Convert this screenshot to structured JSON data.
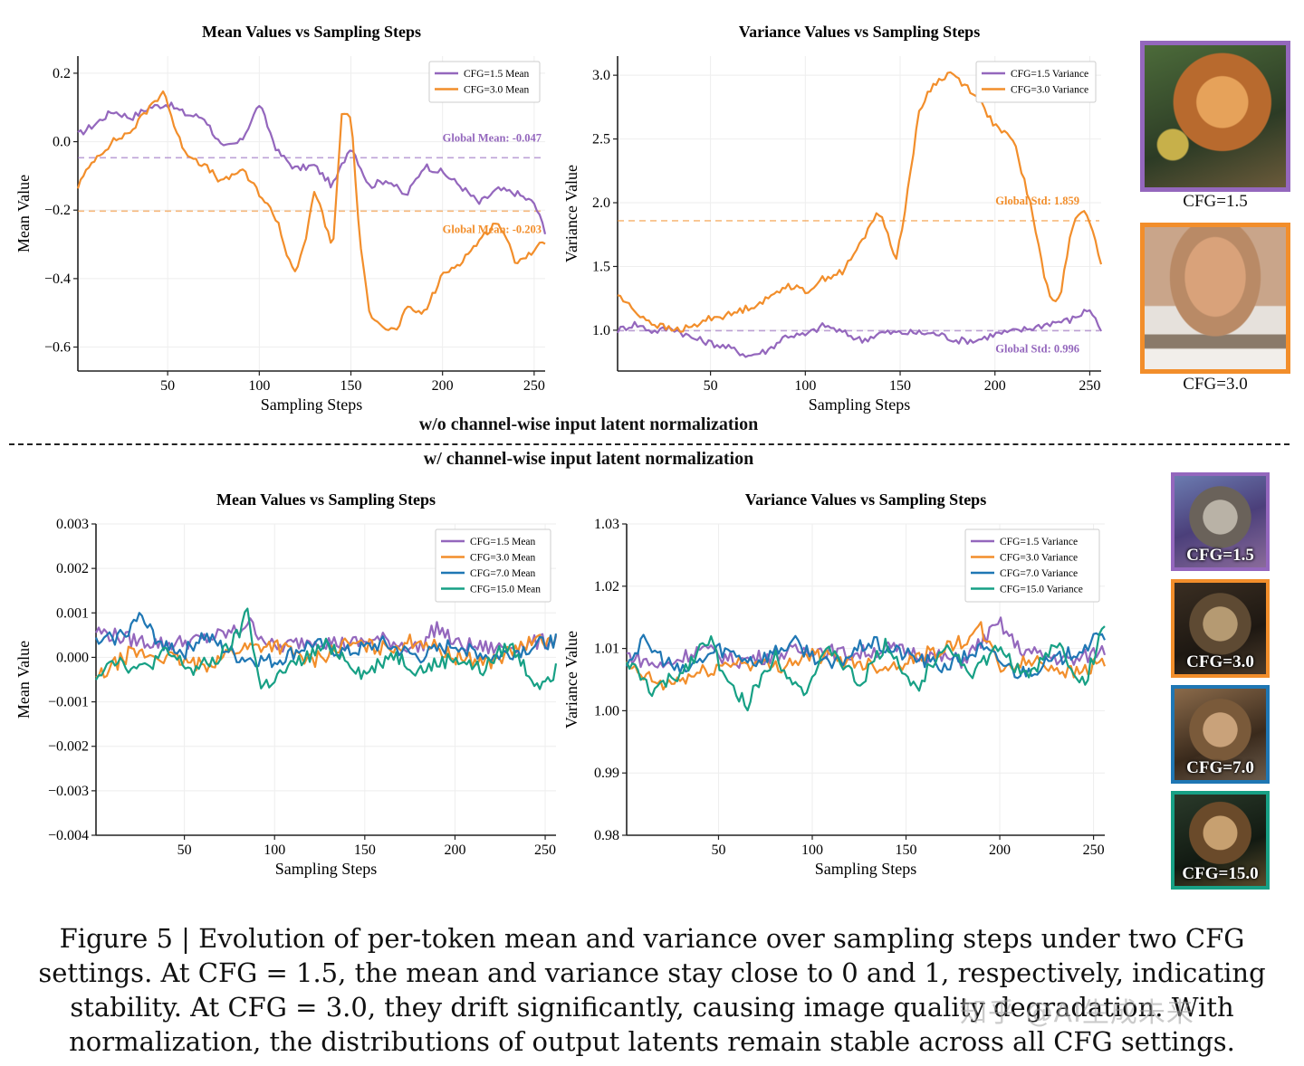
{
  "section_top_label": "w/o channel-wise input latent normalization",
  "section_bottom_label": "w/ channel-wise input latent normalization",
  "caption": "Figure 5 | Evolution of per-token mean and variance over sampling steps under two CFG settings. At CFG = 1.5, the mean and variance stay close to 0 and 1, respectively, indicating stability. At CFG = 3.0, they drift significantly, causing image quality degradation. With normalization, the distributions of output latents remain stable across all CFG settings.",
  "watermark": "知乎 @AI生成未来",
  "colors": {
    "cfg15": "#9467bd",
    "cfg30": "#f28e2b",
    "cfg70": "#1f77b4",
    "cfg150": "#17a085"
  },
  "thumbs_top": [
    {
      "label": "CFG=1.5",
      "color": "#9467bd",
      "icon": "cat-image"
    },
    {
      "label": "CFG=3.0",
      "color": "#f28e2b",
      "icon": "cat-image"
    }
  ],
  "thumbs_bottom": [
    {
      "label": "CFG=1.5",
      "color": "#9467bd",
      "icon": "cat-image"
    },
    {
      "label": "CFG=3.0",
      "color": "#f28e2b",
      "icon": "cat-image"
    },
    {
      "label": "CFG=7.0",
      "color": "#1f77b4",
      "icon": "cat-image"
    },
    {
      "label": "CFG=15.0",
      "color": "#17a085",
      "icon": "cat-image"
    }
  ],
  "chart_data": [
    {
      "type": "line",
      "title": "Mean Values vs Sampling Steps",
      "xlabel": "Sampling Steps",
      "ylabel": "Mean Value",
      "xlim": [
        1,
        256
      ],
      "ylim": [
        -0.67,
        0.25
      ],
      "xticks": [
        50,
        100,
        150,
        200,
        250
      ],
      "yticks": [
        0.2,
        0.0,
        -0.2,
        -0.4,
        -0.6
      ],
      "ytick_labels": [
        "0.2",
        "0.0",
        "−0.2",
        "−0.4",
        "−0.6"
      ],
      "legend": "top-right",
      "series": [
        {
          "name": "CFG=1.5 Mean",
          "color": "#9467bd",
          "x": [
            1,
            10,
            20,
            30,
            40,
            50,
            60,
            70,
            80,
            90,
            100,
            110,
            120,
            130,
            140,
            150,
            160,
            170,
            180,
            190,
            200,
            210,
            220,
            230,
            240,
            250,
            256
          ],
          "y": [
            0.02,
            0.05,
            0.09,
            0.07,
            0.1,
            0.11,
            0.08,
            0.07,
            -0.02,
            0.0,
            0.11,
            -0.03,
            -0.08,
            -0.07,
            -0.13,
            -0.01,
            -0.13,
            -0.11,
            -0.16,
            -0.07,
            -0.09,
            -0.13,
            -0.18,
            -0.14,
            -0.15,
            -0.18,
            -0.26
          ]
        },
        {
          "name": "CFG=3.0 Mean",
          "color": "#f28e2b",
          "x": [
            1,
            10,
            20,
            30,
            40,
            48,
            55,
            60,
            70,
            80,
            90,
            100,
            110,
            115,
            120,
            125,
            130,
            135,
            140,
            145,
            150,
            155,
            160,
            165,
            170,
            175,
            180,
            190,
            200,
            210,
            220,
            230,
            240,
            250,
            256
          ],
          "y": [
            -0.13,
            -0.05,
            0.0,
            0.03,
            0.1,
            0.15,
            0.02,
            -0.03,
            -0.07,
            -0.12,
            -0.08,
            -0.15,
            -0.23,
            -0.33,
            -0.38,
            -0.3,
            -0.14,
            -0.22,
            -0.32,
            0.08,
            0.08,
            -0.3,
            -0.5,
            -0.52,
            -0.55,
            -0.55,
            -0.49,
            -0.5,
            -0.39,
            -0.35,
            -0.29,
            -0.23,
            -0.35,
            -0.32,
            -0.29
          ]
        }
      ],
      "annotations": [
        {
          "text": "Global Mean: -0.047",
          "y": -0.047,
          "color": "#9467bd"
        },
        {
          "text": "Global Mean: -0.203",
          "y": -0.203,
          "color": "#f28e2b"
        }
      ]
    },
    {
      "type": "line",
      "title": "Variance Values vs Sampling Steps",
      "xlabel": "Sampling Steps",
      "ylabel": "Variance Value",
      "xlim": [
        1,
        256
      ],
      "ylim": [
        0.68,
        3.15
      ],
      "xticks": [
        50,
        100,
        150,
        200,
        250
      ],
      "yticks": [
        3.0,
        2.5,
        2.0,
        1.5,
        1.0
      ],
      "ytick_labels": [
        "3.0",
        "2.5",
        "2.0",
        "1.5",
        "1.0"
      ],
      "legend": "top-right",
      "series": [
        {
          "name": "CFG=1.5 Variance",
          "color": "#9467bd",
          "x": [
            1,
            10,
            20,
            30,
            40,
            50,
            60,
            70,
            80,
            90,
            100,
            110,
            120,
            130,
            140,
            150,
            160,
            170,
            180,
            190,
            200,
            210,
            220,
            230,
            240,
            250,
            256
          ],
          "y": [
            1.0,
            1.05,
            0.99,
            1.02,
            0.94,
            0.9,
            0.86,
            0.8,
            0.84,
            0.96,
            0.96,
            1.04,
            0.98,
            0.92,
            0.98,
            0.98,
            0.98,
            0.97,
            0.92,
            0.92,
            0.97,
            0.99,
            1.02,
            1.06,
            1.08,
            1.17,
            1.0
          ]
        },
        {
          "name": "CFG=3.0 Variance",
          "color": "#f28e2b",
          "x": [
            1,
            10,
            20,
            30,
            40,
            50,
            60,
            70,
            80,
            90,
            100,
            110,
            120,
            130,
            138,
            143,
            148,
            152,
            160,
            165,
            172,
            177,
            182,
            190,
            200,
            210,
            215,
            220,
            225,
            230,
            235,
            240,
            245,
            250,
            256
          ],
          "y": [
            1.28,
            1.15,
            1.05,
            1.0,
            1.02,
            1.1,
            1.12,
            1.18,
            1.24,
            1.36,
            1.3,
            1.41,
            1.46,
            1.7,
            1.94,
            1.78,
            1.55,
            1.9,
            2.7,
            2.88,
            2.98,
            3.02,
            2.95,
            2.85,
            2.6,
            2.48,
            2.2,
            1.9,
            1.5,
            1.2,
            1.3,
            1.8,
            1.96,
            1.85,
            1.52
          ]
        }
      ],
      "annotations": [
        {
          "text": "Global Std: 1.859",
          "y": 1.859,
          "color": "#f28e2b"
        },
        {
          "text": "Global Std: 0.996",
          "y": 0.996,
          "color": "#9467bd"
        }
      ]
    },
    {
      "type": "line",
      "title": "Mean Values vs Sampling Steps",
      "xlabel": "Sampling Steps",
      "ylabel": "Mean Value",
      "xlim": [
        1,
        256
      ],
      "ylim": [
        -0.004,
        0.003
      ],
      "xticks": [
        50,
        100,
        150,
        200,
        250
      ],
      "yticks": [
        0.003,
        0.002,
        0.001,
        0.0,
        -0.001,
        -0.002,
        -0.003,
        -0.004
      ],
      "ytick_labels": [
        "0.003",
        "0.002",
        "0.001",
        "0.000",
        "−0.001",
        "−0.002",
        "−0.003",
        "−0.004"
      ],
      "legend": "top-right",
      "series": [
        {
          "name": "CFG=1.5 Mean",
          "color": "#9467bd",
          "x": [
            1,
            20,
            40,
            60,
            80,
            85,
            100,
            120,
            140,
            160,
            180,
            190,
            200,
            220,
            240,
            256
          ],
          "y": [
            0.0006,
            0.0004,
            0.0003,
            0.0004,
            0.0006,
            0.0008,
            0.0002,
            0.0004,
            0.0003,
            0.0004,
            0.0002,
            0.0007,
            0.0003,
            0.0002,
            0.0003,
            0.0004
          ]
        },
        {
          "name": "CFG=3.0 Mean",
          "color": "#f28e2b",
          "x": [
            1,
            20,
            40,
            60,
            80,
            100,
            120,
            140,
            160,
            180,
            200,
            220,
            240,
            256
          ],
          "y": [
            -0.0005,
            0.0001,
            0.0,
            -0.0002,
            0.0002,
            0.0003,
            -0.0001,
            0.0003,
            0.0002,
            0.0004,
            0.0,
            -0.0001,
            0.0003,
            0.0004
          ]
        },
        {
          "name": "CFG=7.0 Mean",
          "color": "#1f77b4",
          "x": [
            1,
            15,
            25,
            35,
            50,
            60,
            80,
            100,
            120,
            140,
            160,
            180,
            200,
            220,
            240,
            256
          ],
          "y": [
            0.0003,
            0.0005,
            0.0009,
            0.0004,
            0.0001,
            0.0005,
            0.0,
            -0.0001,
            0.0003,
            0.0001,
            0.0003,
            0.0,
            0.0003,
            0.0,
            0.0002,
            0.0004
          ]
        },
        {
          "name": "CFG=15.0 Mean",
          "color": "#17a085",
          "x": [
            1,
            10,
            25,
            40,
            55,
            70,
            80,
            85,
            92,
            110,
            130,
            150,
            165,
            180,
            200,
            215,
            230,
            245,
            256
          ],
          "y": [
            -0.0004,
            0.0,
            -0.0003,
            0.0001,
            -0.0003,
            0.0,
            0.0005,
            0.0011,
            -0.0007,
            -0.0002,
            0.0003,
            -0.0004,
            0.0001,
            -0.0003,
            0.0,
            -0.0003,
            0.0003,
            -0.0006,
            -0.0003
          ]
        }
      ]
    },
    {
      "type": "line",
      "title": "Variance Values vs Sampling Steps",
      "xlabel": "Sampling Steps",
      "ylabel": "Variance Value",
      "xlim": [
        1,
        256
      ],
      "ylim": [
        0.98,
        1.03
      ],
      "xticks": [
        50,
        100,
        150,
        200,
        250
      ],
      "yticks": [
        1.03,
        1.02,
        1.01,
        1.0,
        0.99,
        0.98
      ],
      "ytick_labels": [
        "1.03",
        "1.02",
        "1.01",
        "1.00",
        "0.99",
        "0.98"
      ],
      "legend": "top-right",
      "series": [
        {
          "name": "CFG=1.5 Variance",
          "color": "#9467bd",
          "x": [
            1,
            20,
            40,
            60,
            80,
            100,
            120,
            140,
            160,
            180,
            200,
            210,
            220,
            240,
            256
          ],
          "y": [
            1.009,
            1.007,
            1.01,
            1.008,
            1.009,
            1.01,
            1.009,
            1.01,
            1.009,
            1.008,
            1.014,
            1.01,
            1.009,
            1.008,
            1.01
          ]
        },
        {
          "name": "CFG=3.0 Variance",
          "color": "#f28e2b",
          "x": [
            1,
            20,
            40,
            60,
            80,
            100,
            120,
            140,
            160,
            180,
            190,
            200,
            220,
            240,
            256
          ],
          "y": [
            1.007,
            1.004,
            1.006,
            1.008,
            1.007,
            1.009,
            1.008,
            1.007,
            1.009,
            1.011,
            1.013,
            1.007,
            1.008,
            1.006,
            1.008
          ]
        },
        {
          "name": "CFG=7.0 Variance",
          "color": "#1f77b4",
          "x": [
            1,
            10,
            30,
            50,
            70,
            90,
            110,
            130,
            150,
            170,
            190,
            210,
            230,
            256
          ],
          "y": [
            1.008,
            1.011,
            1.006,
            1.01,
            1.008,
            1.011,
            1.007,
            1.011,
            1.009,
            1.007,
            1.01,
            1.006,
            1.008,
            1.012
          ]
        },
        {
          "name": "CFG=15.0 Variance",
          "color": "#17a085",
          "x": [
            1,
            15,
            30,
            45,
            55,
            65,
            80,
            95,
            110,
            125,
            140,
            155,
            170,
            185,
            200,
            215,
            230,
            245,
            256
          ],
          "y": [
            1.008,
            1.003,
            1.006,
            1.012,
            1.004,
            1.001,
            1.009,
            1.003,
            1.01,
            1.004,
            1.011,
            1.003,
            1.011,
            1.006,
            1.01,
            1.005,
            1.011,
            1.004,
            1.014
          ]
        }
      ]
    }
  ]
}
